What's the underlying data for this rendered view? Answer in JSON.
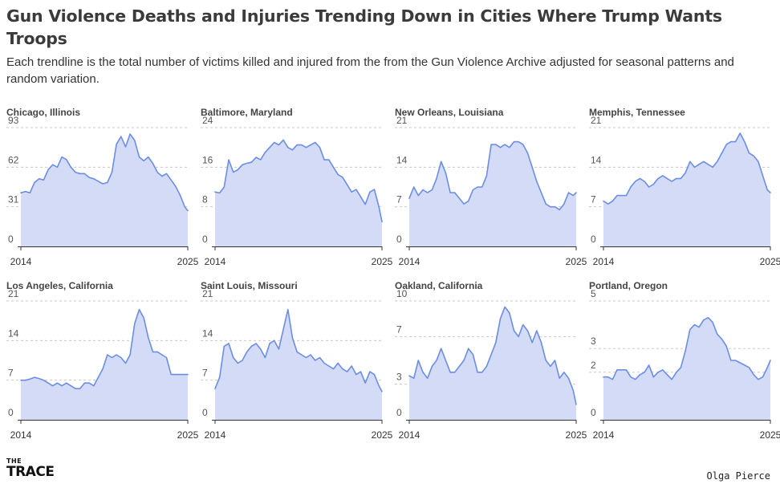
{
  "title": "Gun Violence Deaths and Injuries Trending Down in Cities Where Trump Wants Troops",
  "subtitle": "Each trendline is the total number of victims killed and injured from the from the Gun Violence Archive adjusted for seasonal patterns and random variation.",
  "credit": "Olga Pierce",
  "logo": {
    "line1": "THE",
    "line2": "TRACE"
  },
  "colors": {
    "line": "#6b8de3",
    "fill": "#d3dbf7",
    "grid": "#c8c8c8",
    "axis": "#333333",
    "label": "#555555"
  },
  "chart_data": [
    {
      "type": "area",
      "title": "Chicago, Illinois",
      "xlim": [
        2014,
        2025
      ],
      "xticks": [
        "2014",
        "2025"
      ],
      "ylim": [
        0,
        93
      ],
      "yticks": [
        0,
        31,
        62,
        93
      ],
      "x": [
        2014.0,
        2014.3,
        2014.6,
        2014.9,
        2015.2,
        2015.5,
        2015.8,
        2016.1,
        2016.4,
        2016.7,
        2017.0,
        2017.3,
        2017.6,
        2017.9,
        2018.2,
        2018.5,
        2018.8,
        2019.1,
        2019.4,
        2019.7,
        2020.0,
        2020.3,
        2020.6,
        2020.9,
        2021.2,
        2021.5,
        2021.8,
        2022.1,
        2022.4,
        2022.7,
        2023.0,
        2023.3,
        2023.6,
        2023.9,
        2024.2,
        2024.5,
        2024.8,
        2025.0
      ],
      "y": [
        42,
        43,
        42,
        50,
        53,
        52,
        60,
        64,
        62,
        70,
        68,
        62,
        58,
        57,
        57,
        54,
        53,
        51,
        49,
        50,
        58,
        80,
        86,
        78,
        88,
        83,
        70,
        67,
        70,
        65,
        58,
        55,
        57,
        52,
        47,
        40,
        31,
        28
      ]
    },
    {
      "type": "area",
      "title": "Baltimore, Maryland",
      "xlim": [
        2014,
        2025
      ],
      "xticks": [
        "2014",
        "2025"
      ],
      "ylim": [
        0,
        24
      ],
      "yticks": [
        0,
        8,
        16,
        24
      ],
      "x": [
        2014.0,
        2014.3,
        2014.6,
        2014.9,
        2015.2,
        2015.5,
        2015.8,
        2016.1,
        2016.4,
        2016.7,
        2017.0,
        2017.3,
        2017.6,
        2017.9,
        2018.2,
        2018.5,
        2018.8,
        2019.1,
        2019.4,
        2019.7,
        2020.0,
        2020.3,
        2020.6,
        2020.9,
        2021.2,
        2021.5,
        2021.8,
        2022.1,
        2022.4,
        2022.7,
        2023.0,
        2023.3,
        2023.6,
        2023.9,
        2024.2,
        2024.5,
        2024.8,
        2025.0
      ],
      "y": [
        11,
        10.8,
        12,
        17.5,
        15,
        15.5,
        16.5,
        16.8,
        17,
        18,
        17.5,
        19,
        20,
        21,
        20.5,
        21.5,
        20,
        19.5,
        20.5,
        20.5,
        20,
        20.5,
        21,
        20,
        17.5,
        17.5,
        16,
        14.5,
        14,
        12.5,
        11,
        11.5,
        10,
        8.5,
        11,
        11.5,
        8,
        5
      ]
    },
    {
      "type": "area",
      "title": "New Orleans, Louisiana",
      "xlim": [
        2014,
        2025
      ],
      "xticks": [
        "2014",
        "2025"
      ],
      "ylim": [
        0,
        21
      ],
      "yticks": [
        0,
        7,
        14,
        21
      ],
      "x": [
        2014.0,
        2014.3,
        2014.6,
        2014.9,
        2015.2,
        2015.5,
        2015.8,
        2016.1,
        2016.4,
        2016.7,
        2017.0,
        2017.3,
        2017.6,
        2017.9,
        2018.2,
        2018.5,
        2018.8,
        2019.1,
        2019.4,
        2019.7,
        2020.0,
        2020.3,
        2020.6,
        2020.9,
        2021.2,
        2021.5,
        2021.8,
        2022.1,
        2022.4,
        2022.7,
        2023.0,
        2023.3,
        2023.6,
        2023.9,
        2024.2,
        2024.5,
        2024.8,
        2025.0
      ],
      "y": [
        8.5,
        10.5,
        9,
        10,
        9.5,
        10,
        12,
        15,
        13,
        9.5,
        9.5,
        8.5,
        7.5,
        8,
        10,
        10.5,
        10.5,
        12.5,
        18,
        18,
        17.5,
        18,
        17.5,
        18.5,
        18.5,
        18,
        16.5,
        14,
        11.5,
        9.5,
        7.5,
        7,
        7,
        6.5,
        7.5,
        9.5,
        9,
        9.5
      ]
    },
    {
      "type": "area",
      "title": "Memphis, Tennessee",
      "xlim": [
        2014,
        2025
      ],
      "xticks": [
        "2014",
        "2025"
      ],
      "ylim": [
        0,
        21
      ],
      "yticks": [
        0,
        7,
        14,
        21
      ],
      "x": [
        2014.0,
        2014.3,
        2014.6,
        2014.9,
        2015.2,
        2015.5,
        2015.8,
        2016.1,
        2016.4,
        2016.7,
        2017.0,
        2017.3,
        2017.6,
        2017.9,
        2018.2,
        2018.5,
        2018.8,
        2019.1,
        2019.4,
        2019.7,
        2020.0,
        2020.3,
        2020.6,
        2020.9,
        2021.2,
        2021.5,
        2021.8,
        2022.1,
        2022.4,
        2022.7,
        2023.0,
        2023.3,
        2023.6,
        2023.9,
        2024.2,
        2024.5,
        2024.8,
        2025.0
      ],
      "y": [
        8,
        7.5,
        8,
        9,
        9,
        9,
        10.5,
        11.5,
        12,
        11.5,
        10.5,
        11,
        12,
        12.5,
        12,
        11.5,
        12,
        12,
        13,
        15,
        14,
        14.5,
        15,
        14.5,
        14,
        15,
        16.5,
        18,
        18.5,
        18.5,
        20,
        18.5,
        16.5,
        16,
        15,
        12.5,
        10,
        9.5
      ]
    },
    {
      "type": "area",
      "title": "Los Angeles, California",
      "xlim": [
        2014,
        2025
      ],
      "xticks": [
        "2014",
        "2025"
      ],
      "ylim": [
        0,
        21
      ],
      "yticks": [
        0,
        7,
        14,
        21
      ],
      "x": [
        2014.0,
        2014.3,
        2014.6,
        2014.9,
        2015.2,
        2015.5,
        2015.8,
        2016.1,
        2016.4,
        2016.7,
        2017.0,
        2017.3,
        2017.6,
        2017.9,
        2018.2,
        2018.5,
        2018.8,
        2019.1,
        2019.4,
        2019.7,
        2020.0,
        2020.3,
        2020.6,
        2020.9,
        2021.2,
        2021.5,
        2021.8,
        2022.1,
        2022.4,
        2022.7,
        2023.0,
        2023.3,
        2023.6,
        2023.9,
        2024.2,
        2024.5,
        2024.8,
        2025.0
      ],
      "y": [
        7,
        7,
        7.2,
        7.5,
        7.3,
        7,
        6.5,
        6,
        6.5,
        6,
        6.5,
        6,
        5.5,
        5.5,
        6.5,
        6.5,
        6,
        7.5,
        9,
        11.5,
        11,
        11.5,
        11,
        10,
        11.5,
        17,
        19.5,
        18,
        14.5,
        12,
        12,
        11.5,
        11,
        8,
        8,
        8,
        8,
        8
      ]
    },
    {
      "type": "area",
      "title": "Saint Louis, Missouri",
      "xlim": [
        2014,
        2025
      ],
      "xticks": [
        "2014",
        "2025"
      ],
      "ylim": [
        0,
        21
      ],
      "yticks": [
        0,
        7,
        14,
        21
      ],
      "x": [
        2014.0,
        2014.3,
        2014.6,
        2014.9,
        2015.2,
        2015.5,
        2015.8,
        2016.1,
        2016.4,
        2016.7,
        2017.0,
        2017.3,
        2017.6,
        2017.9,
        2018.2,
        2018.5,
        2018.8,
        2019.1,
        2019.4,
        2019.7,
        2020.0,
        2020.3,
        2020.6,
        2020.9,
        2021.2,
        2021.5,
        2021.8,
        2022.1,
        2022.4,
        2022.7,
        2023.0,
        2023.3,
        2023.6,
        2023.9,
        2024.2,
        2024.5,
        2024.8,
        2025.0
      ],
      "y": [
        5.5,
        7.5,
        13,
        13.5,
        11,
        10,
        10.5,
        12,
        13,
        13.5,
        12.5,
        11,
        13.5,
        14,
        12.5,
        16,
        19.5,
        14.5,
        12,
        11.5,
        11,
        11.5,
        10.5,
        11,
        10,
        9.5,
        9,
        10,
        9,
        8.5,
        9.5,
        8,
        8.5,
        6.5,
        8.5,
        8,
        6,
        5
      ]
    },
    {
      "type": "area",
      "title": "Oakland, California",
      "xlim": [
        2014,
        2025
      ],
      "xticks": [
        "2014",
        "2025"
      ],
      "ylim": [
        0,
        10
      ],
      "yticks": [
        0,
        3,
        7,
        10
      ],
      "x": [
        2014.0,
        2014.3,
        2014.6,
        2014.9,
        2015.2,
        2015.5,
        2015.8,
        2016.1,
        2016.4,
        2016.7,
        2017.0,
        2017.3,
        2017.6,
        2017.9,
        2018.2,
        2018.5,
        2018.8,
        2019.1,
        2019.4,
        2019.7,
        2020.0,
        2020.3,
        2020.6,
        2020.9,
        2021.2,
        2021.5,
        2021.8,
        2022.1,
        2022.4,
        2022.7,
        2023.0,
        2023.3,
        2023.6,
        2023.9,
        2024.2,
        2024.5,
        2024.8,
        2025.0
      ],
      "y": [
        3.7,
        3.5,
        5,
        4,
        3.5,
        4.5,
        5,
        6,
        5,
        4,
        4,
        4.5,
        5,
        6,
        5.5,
        4,
        4,
        4.5,
        5.5,
        6.5,
        8.5,
        9.5,
        9,
        7.5,
        7,
        8,
        7.5,
        6.5,
        7.5,
        6.5,
        5,
        4.5,
        5,
        3.5,
        4,
        3.5,
        2.5,
        1.3
      ]
    },
    {
      "type": "area",
      "title": "Portland, Oregon",
      "xlim": [
        2014,
        2025
      ],
      "xticks": [
        "2014",
        "2025"
      ],
      "ylim": [
        0,
        5
      ],
      "yticks": [
        0,
        2,
        3,
        5
      ],
      "x": [
        2014.0,
        2014.3,
        2014.6,
        2014.9,
        2015.2,
        2015.5,
        2015.8,
        2016.1,
        2016.4,
        2016.7,
        2017.0,
        2017.3,
        2017.6,
        2017.9,
        2018.2,
        2018.5,
        2018.8,
        2019.1,
        2019.4,
        2019.7,
        2020.0,
        2020.3,
        2020.6,
        2020.9,
        2021.2,
        2021.5,
        2021.8,
        2022.1,
        2022.4,
        2022.7,
        2023.0,
        2023.3,
        2023.6,
        2023.9,
        2024.2,
        2024.5,
        2024.8,
        2025.0
      ],
      "y": [
        1.8,
        1.8,
        1.7,
        2.1,
        2.1,
        2.1,
        1.8,
        1.7,
        1.9,
        2.0,
        2.3,
        1.8,
        2.0,
        2.1,
        1.9,
        1.7,
        2.0,
        2.2,
        2.9,
        3.8,
        4.0,
        3.9,
        4.2,
        4.3,
        4.1,
        3.6,
        3.4,
        3.1,
        2.5,
        2.5,
        2.4,
        2.3,
        2.2,
        1.9,
        1.7,
        1.8,
        2.2,
        2.5
      ]
    }
  ]
}
